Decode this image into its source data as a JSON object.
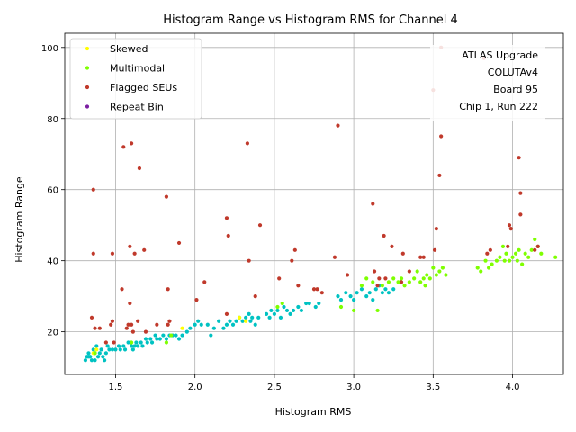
{
  "chart_data": {
    "type": "scatter",
    "title": "Histogram Range vs Histogram RMS for Channel 4",
    "xlabel": "Histogram RMS",
    "ylabel": "Histogram Range",
    "xlim": [
      1.18,
      4.32
    ],
    "ylim": [
      8,
      104
    ],
    "xticks": [
      1.5,
      2.0,
      2.5,
      3.0,
      3.5,
      4.0
    ],
    "xtick_labels": [
      "1.5",
      "2.0",
      "2.5",
      "3.0",
      "3.5",
      "4.0"
    ],
    "yticks": [
      20,
      40,
      60,
      80,
      100
    ],
    "ytick_labels": [
      "20",
      "40",
      "60",
      "80",
      "100"
    ],
    "grid": true,
    "legend_position": "top-left",
    "annotation_lines": [
      "ATLAS Upgrade",
      "COLUTAv4",
      "Board 95",
      "Chip 1, Run 222"
    ],
    "annotation_position": "top-right",
    "series": [
      {
        "name": "",
        "color": "#00c2c2",
        "in_legend": false,
        "points": [
          [
            1.31,
            12
          ],
          [
            1.32,
            13
          ],
          [
            1.33,
            14
          ],
          [
            1.34,
            13
          ],
          [
            1.35,
            12
          ],
          [
            1.36,
            15
          ],
          [
            1.37,
            14
          ],
          [
            1.38,
            16
          ],
          [
            1.39,
            13
          ],
          [
            1.4,
            14
          ],
          [
            1.41,
            15
          ],
          [
            1.42,
            13
          ],
          [
            1.43,
            12
          ],
          [
            1.44,
            14
          ],
          [
            1.46,
            15
          ],
          [
            1.48,
            15
          ],
          [
            1.5,
            15
          ],
          [
            1.52,
            16
          ],
          [
            1.53,
            15
          ],
          [
            1.55,
            16
          ],
          [
            1.56,
            15
          ],
          [
            1.58,
            17
          ],
          [
            1.6,
            16
          ],
          [
            1.61,
            15
          ],
          [
            1.63,
            17
          ],
          [
            1.64,
            16
          ],
          [
            1.66,
            17
          ],
          [
            1.67,
            16
          ],
          [
            1.69,
            18
          ],
          [
            1.7,
            17
          ],
          [
            1.72,
            18
          ],
          [
            1.73,
            17
          ],
          [
            1.75,
            19
          ],
          [
            1.76,
            18
          ],
          [
            1.78,
            18
          ],
          [
            1.8,
            19
          ],
          [
            1.82,
            18
          ],
          [
            1.84,
            19
          ],
          [
            1.86,
            19
          ],
          [
            1.88,
            19
          ],
          [
            1.9,
            18
          ],
          [
            1.92,
            19
          ],
          [
            1.95,
            20
          ],
          [
            1.97,
            21
          ],
          [
            2.0,
            22
          ],
          [
            2.02,
            23
          ],
          [
            2.04,
            22
          ],
          [
            2.08,
            22
          ],
          [
            2.1,
            19
          ],
          [
            2.12,
            21
          ],
          [
            2.15,
            23
          ],
          [
            2.18,
            21
          ],
          [
            2.2,
            22
          ],
          [
            2.22,
            23
          ],
          [
            2.24,
            22
          ],
          [
            2.26,
            23
          ],
          [
            2.28,
            24
          ],
          [
            2.3,
            23
          ],
          [
            2.32,
            24
          ],
          [
            2.34,
            25
          ],
          [
            2.35,
            23
          ],
          [
            2.36,
            24
          ],
          [
            2.38,
            22
          ],
          [
            2.4,
            24
          ],
          [
            2.45,
            25
          ],
          [
            2.47,
            24
          ],
          [
            2.48,
            26
          ],
          [
            2.5,
            25
          ],
          [
            2.52,
            26
          ],
          [
            2.54,
            24
          ],
          [
            2.56,
            27
          ],
          [
            2.58,
            26
          ],
          [
            2.6,
            25
          ],
          [
            2.62,
            26
          ],
          [
            2.65,
            27
          ],
          [
            2.67,
            26
          ],
          [
            2.7,
            28
          ],
          [
            2.72,
            28
          ],
          [
            2.76,
            27
          ],
          [
            2.78,
            28
          ],
          [
            2.9,
            30
          ],
          [
            2.92,
            29
          ],
          [
            2.95,
            31
          ],
          [
            2.98,
            30
          ],
          [
            3.0,
            29
          ],
          [
            3.02,
            31
          ],
          [
            3.05,
            32
          ],
          [
            3.08,
            30
          ],
          [
            3.1,
            31
          ],
          [
            3.12,
            29
          ],
          [
            3.14,
            32
          ],
          [
            3.16,
            33
          ],
          [
            3.18,
            31
          ],
          [
            3.2,
            32
          ],
          [
            3.22,
            31
          ],
          [
            3.25,
            32
          ],
          [
            1.33,
            13
          ],
          [
            1.37,
            12
          ],
          [
            1.45,
            16
          ],
          [
            1.62,
            16
          ]
        ]
      },
      {
        "name": "Skewed",
        "color": "#ffff00",
        "in_legend": true,
        "points": [
          [
            1.36,
            14
          ],
          [
            1.38,
            15
          ],
          [
            2.28,
            24
          ],
          [
            2.32,
            23
          ],
          [
            1.92,
            21
          ]
        ]
      },
      {
        "name": "Multimodal",
        "color": "#7fff00",
        "in_legend": true,
        "points": [
          [
            1.37,
            14
          ],
          [
            1.6,
            17
          ],
          [
            1.82,
            17
          ],
          [
            1.85,
            19
          ],
          [
            2.52,
            27
          ],
          [
            2.55,
            28
          ],
          [
            2.92,
            27
          ],
          [
            3.0,
            26
          ],
          [
            3.05,
            33
          ],
          [
            3.08,
            35
          ],
          [
            3.12,
            34
          ],
          [
            3.15,
            26
          ],
          [
            3.18,
            33
          ],
          [
            3.22,
            34
          ],
          [
            3.25,
            35
          ],
          [
            3.28,
            34
          ],
          [
            3.3,
            35
          ],
          [
            3.32,
            33
          ],
          [
            3.35,
            34
          ],
          [
            3.38,
            35
          ],
          [
            3.4,
            37
          ],
          [
            3.42,
            34
          ],
          [
            3.44,
            35
          ],
          [
            3.46,
            36
          ],
          [
            3.48,
            35
          ],
          [
            3.5,
            38
          ],
          [
            3.52,
            36
          ],
          [
            3.54,
            37
          ],
          [
            3.56,
            38
          ],
          [
            3.58,
            36
          ],
          [
            3.78,
            38
          ],
          [
            3.8,
            37
          ],
          [
            3.83,
            40
          ],
          [
            3.85,
            38
          ],
          [
            3.87,
            39
          ],
          [
            3.9,
            40
          ],
          [
            3.92,
            41
          ],
          [
            3.94,
            44
          ],
          [
            3.96,
            42
          ],
          [
            3.98,
            40
          ],
          [
            4.0,
            41
          ],
          [
            4.02,
            42
          ],
          [
            4.04,
            43
          ],
          [
            4.06,
            39
          ],
          [
            4.08,
            42
          ],
          [
            4.1,
            41
          ],
          [
            4.12,
            43
          ],
          [
            4.14,
            46
          ],
          [
            4.16,
            44
          ],
          [
            4.18,
            42
          ],
          [
            4.27,
            41
          ],
          [
            3.95,
            40
          ],
          [
            4.03,
            40
          ],
          [
            3.45,
            33
          ]
        ]
      },
      {
        "name": "Flagged SEUs",
        "color": "#c0392b",
        "in_legend": true,
        "points": [
          [
            1.35,
            24
          ],
          [
            1.36,
            60
          ],
          [
            1.36,
            42
          ],
          [
            1.37,
            21
          ],
          [
            1.4,
            21
          ],
          [
            1.44,
            17
          ],
          [
            1.47,
            22
          ],
          [
            1.48,
            23
          ],
          [
            1.48,
            42
          ],
          [
            1.49,
            17
          ],
          [
            1.54,
            32
          ],
          [
            1.55,
            72
          ],
          [
            1.57,
            21
          ],
          [
            1.58,
            22
          ],
          [
            1.59,
            28
          ],
          [
            1.59,
            44
          ],
          [
            1.6,
            73
          ],
          [
            1.6,
            22
          ],
          [
            1.61,
            20
          ],
          [
            1.62,
            42
          ],
          [
            1.64,
            23
          ],
          [
            1.65,
            66
          ],
          [
            1.68,
            43
          ],
          [
            1.69,
            20
          ],
          [
            1.76,
            22
          ],
          [
            1.82,
            58
          ],
          [
            1.83,
            32
          ],
          [
            1.83,
            22
          ],
          [
            1.84,
            23
          ],
          [
            1.9,
            45
          ],
          [
            2.01,
            29
          ],
          [
            2.06,
            34
          ],
          [
            2.2,
            52
          ],
          [
            2.21,
            47
          ],
          [
            2.2,
            25
          ],
          [
            2.33,
            73
          ],
          [
            2.34,
            40
          ],
          [
            2.38,
            30
          ],
          [
            2.41,
            50
          ],
          [
            2.53,
            35
          ],
          [
            2.61,
            40
          ],
          [
            2.63,
            43
          ],
          [
            2.65,
            33
          ],
          [
            2.75,
            32
          ],
          [
            2.77,
            32
          ],
          [
            2.8,
            31
          ],
          [
            2.88,
            41
          ],
          [
            2.9,
            78
          ],
          [
            2.96,
            36
          ],
          [
            3.12,
            56
          ],
          [
            3.13,
            37
          ],
          [
            3.15,
            33
          ],
          [
            3.16,
            35
          ],
          [
            3.19,
            47
          ],
          [
            3.2,
            35
          ],
          [
            3.24,
            44
          ],
          [
            3.3,
            34
          ],
          [
            3.31,
            42
          ],
          [
            3.35,
            37
          ],
          [
            3.42,
            41
          ],
          [
            3.44,
            41
          ],
          [
            3.5,
            88
          ],
          [
            3.51,
            43
          ],
          [
            3.52,
            49
          ],
          [
            3.54,
            64
          ],
          [
            3.55,
            75
          ],
          [
            3.55,
            100
          ],
          [
            3.82,
            97
          ],
          [
            3.84,
            42
          ],
          [
            3.86,
            43
          ],
          [
            3.97,
            44
          ],
          [
            3.98,
            50
          ],
          [
            3.99,
            49
          ],
          [
            4.04,
            69
          ],
          [
            4.05,
            59
          ],
          [
            4.05,
            53
          ],
          [
            4.14,
            43
          ],
          [
            4.16,
            44
          ]
        ]
      },
      {
        "name": "Repeat Bin",
        "color": "#7b1fa2",
        "in_legend": true,
        "points": []
      }
    ]
  }
}
